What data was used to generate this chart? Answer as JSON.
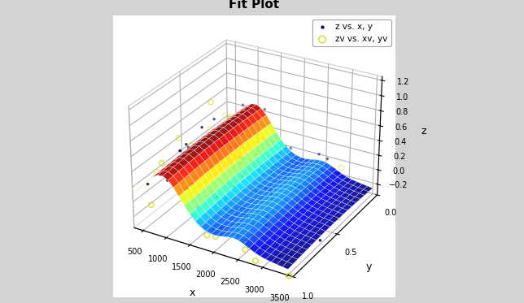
{
  "title": "Fit Plot",
  "xlabel": "x",
  "ylabel": "y",
  "zlabel": "z",
  "legend_entries": [
    "z vs. x, y",
    "zv vs. xv, yv"
  ],
  "surface_colormap": "jet",
  "bg_color": "#e8e8e8",
  "fig_color": "#d3d3d3",
  "seed": 7,
  "n_train": 100,
  "n_val": 60
}
